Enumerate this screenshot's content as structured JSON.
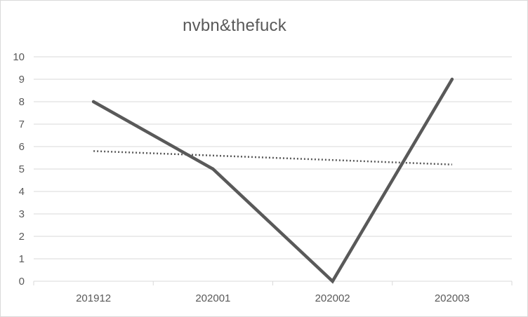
{
  "chart_data": {
    "type": "line",
    "title": "nvbn&thefuck",
    "xlabel": "",
    "ylabel": "",
    "categories": [
      "201912",
      "202001",
      "202002",
      "202003"
    ],
    "series": [
      {
        "values": [
          8,
          5,
          0,
          9
        ],
        "style": "solid",
        "color": "#595959"
      }
    ],
    "trendline": {
      "type": "linear",
      "values": [
        5.8,
        5.6,
        5.4,
        5.2
      ],
      "style": "dotted",
      "color": "#595959"
    },
    "ylim": [
      0,
      10
    ],
    "yticks": [
      0,
      1,
      2,
      3,
      4,
      5,
      6,
      7,
      8,
      9,
      10
    ],
    "grid": true,
    "legend": "none"
  }
}
